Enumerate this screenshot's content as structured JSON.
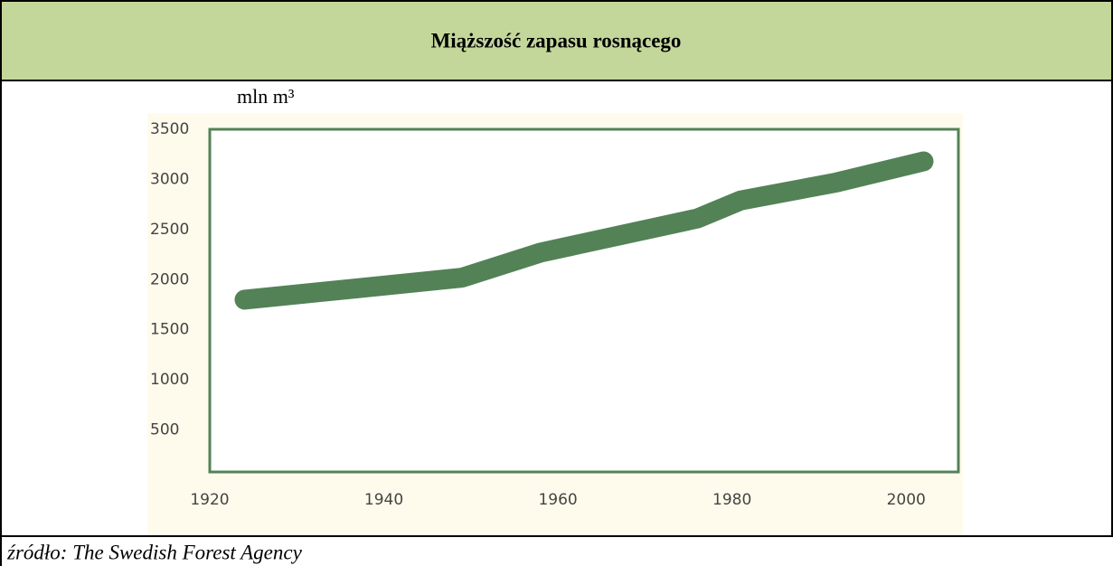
{
  "chart_data": {
    "type": "line",
    "title": "Miąższość zapasu rosnącego",
    "y_label": "mln m³",
    "source": "źródło: The Swedish Forest Agency",
    "x": [
      1924,
      1949,
      1958,
      1976,
      1981,
      1992,
      2002
    ],
    "series": [
      {
        "name": "Miąższość zapasu rosnącego",
        "color": "#538257",
        "values": [
          1800,
          2020,
          2270,
          2610,
          2790,
          2970,
          3180
        ]
      }
    ],
    "xlim": [
      1920,
      2006
    ],
    "xticks": [
      1920,
      1940,
      1960,
      1980,
      2000
    ],
    "ylim": [
      0,
      3500
    ],
    "yticks": [
      500,
      1000,
      1500,
      2000,
      2500,
      3000,
      3500
    ]
  }
}
